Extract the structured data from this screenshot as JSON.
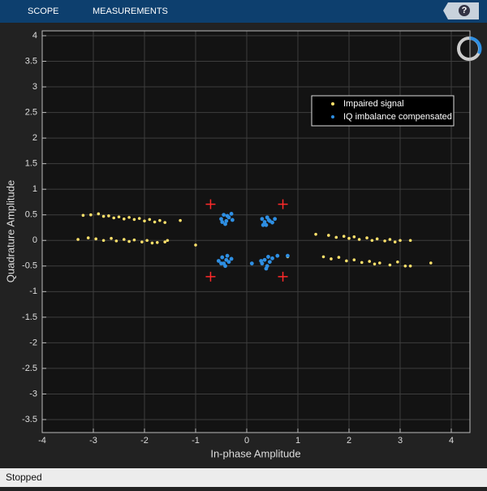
{
  "toolbar": {
    "tabs": [
      "SCOPE",
      "MEASUREMENTS"
    ],
    "help": "?"
  },
  "status": "Stopped",
  "chart_data": {
    "type": "scatter",
    "xlabel": "In-phase Amplitude",
    "ylabel": "Quadrature Amplitude",
    "xlim": [
      -4,
      4.365
    ],
    "ylim": [
      -3.754,
      4.095
    ],
    "xticks": [
      -4,
      -3,
      -2,
      -1,
      0,
      1,
      2,
      3,
      4
    ],
    "yticks": [
      -3.5,
      -3,
      -2.5,
      -2,
      -1.5,
      -1,
      -0.5,
      0,
      0.5,
      1,
      1.5,
      2,
      2.5,
      3,
      3.5,
      4
    ],
    "grid": true,
    "legend": "upper-right",
    "series": [
      {
        "name": "Impaired signal",
        "color": "#ffe16b",
        "x": [
          -3.2,
          -3.05,
          -2.9,
          -2.8,
          -2.7,
          -2.6,
          -2.5,
          -2.4,
          -2.3,
          -2.2,
          -2.1,
          -2.0,
          -1.9,
          -1.8,
          -1.7,
          -1.6,
          -1.3,
          -3.3,
          -3.1,
          -2.95,
          -2.8,
          -2.65,
          -2.55,
          -2.4,
          -2.3,
          -2.2,
          -2.05,
          -1.95,
          -1.85,
          -1.75,
          -1.6,
          -1.55,
          -1.0,
          1.35,
          1.6,
          1.75,
          1.9,
          2.0,
          2.1,
          2.2,
          2.35,
          2.45,
          2.55,
          2.7,
          2.8,
          2.9,
          3.0,
          3.2,
          0.8,
          1.5,
          1.65,
          1.8,
          1.95,
          2.1,
          2.25,
          2.4,
          2.5,
          2.6,
          2.8,
          2.95,
          3.1,
          3.2,
          3.6
        ],
        "y": [
          0.49,
          0.5,
          0.52,
          0.47,
          0.48,
          0.44,
          0.46,
          0.42,
          0.45,
          0.41,
          0.43,
          0.38,
          0.41,
          0.36,
          0.39,
          0.35,
          0.39,
          0.02,
          0.05,
          0.03,
          0.0,
          0.04,
          -0.01,
          0.02,
          -0.02,
          0.01,
          -0.03,
          0.0,
          -0.05,
          -0.04,
          -0.03,
          0.0,
          -0.09,
          0.12,
          0.1,
          0.06,
          0.08,
          0.04,
          0.07,
          0.02,
          0.05,
          0.0,
          0.03,
          -0.01,
          0.02,
          -0.03,
          0.0,
          0.0,
          -0.32,
          -0.32,
          -0.36,
          -0.33,
          -0.4,
          -0.38,
          -0.43,
          -0.41,
          -0.46,
          -0.44,
          -0.48,
          -0.42,
          -0.5,
          -0.5,
          -0.44
        ]
      },
      {
        "name": "IQ imbalance compensated",
        "color": "#2e8fe3",
        "x": [
          -0.5,
          -0.45,
          -0.4,
          -0.35,
          -0.3,
          -0.42,
          -0.28,
          -0.48,
          -0.38,
          0.3,
          0.35,
          0.4,
          0.45,
          0.5,
          0.38,
          0.43,
          0.55,
          0.32,
          -0.55,
          -0.48,
          -0.45,
          -0.4,
          -0.35,
          -0.42,
          -0.5,
          -0.3,
          -0.38,
          0.3,
          0.35,
          0.4,
          0.45,
          0.38,
          0.28,
          0.5,
          0.42,
          0.1,
          0.6,
          0.8
        ],
        "y": [
          0.42,
          0.5,
          0.38,
          0.45,
          0.52,
          0.32,
          0.4,
          0.36,
          0.48,
          0.42,
          0.36,
          0.45,
          0.38,
          0.35,
          0.3,
          0.4,
          0.42,
          0.3,
          -0.4,
          -0.33,
          -0.45,
          -0.38,
          -0.42,
          -0.5,
          -0.45,
          -0.36,
          -0.3,
          -0.45,
          -0.38,
          -0.5,
          -0.42,
          -0.55,
          -0.4,
          -0.35,
          -0.32,
          -0.45,
          -0.3,
          -0.3
        ]
      }
    ],
    "reference_points": {
      "x": [
        -0.707,
        0.707,
        -0.707,
        0.707
      ],
      "y": [
        0.707,
        0.707,
        -0.707,
        -0.707
      ],
      "color": "#ff2a2a"
    }
  }
}
